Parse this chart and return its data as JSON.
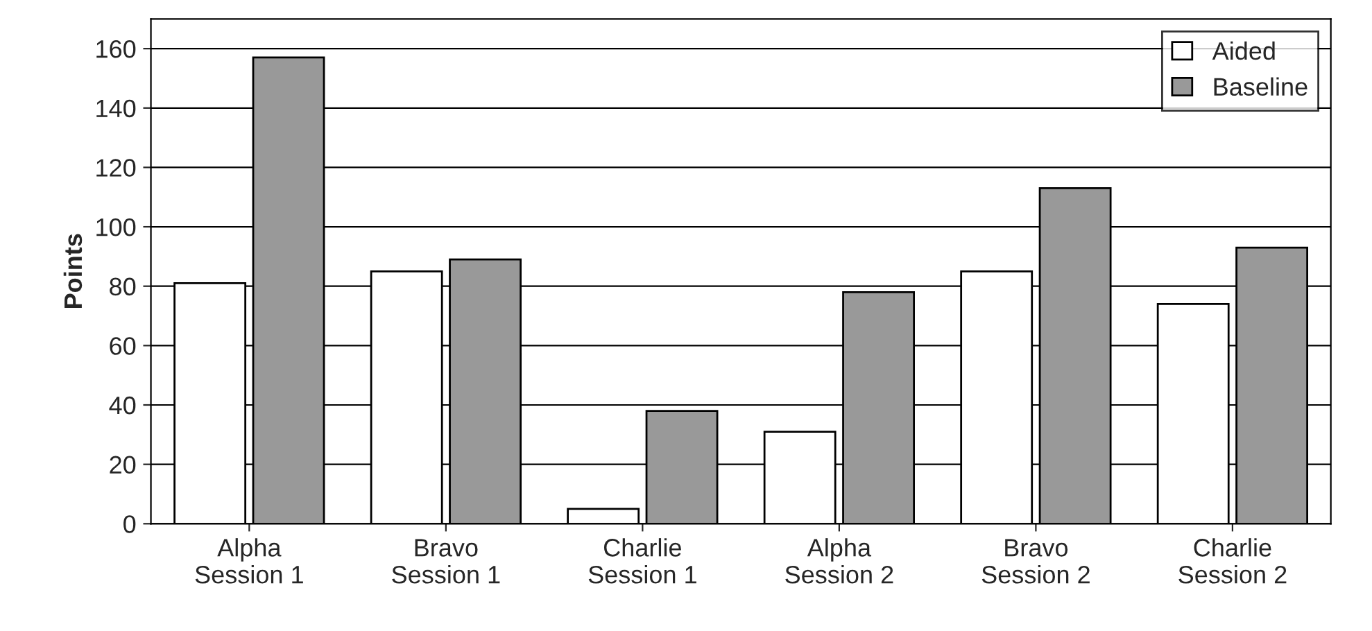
{
  "chart_data": {
    "type": "bar",
    "ylabel": "Points",
    "categories": [
      "Alpha\nSession 1",
      "Bravo\nSession 1",
      "Charlie\nSession 1",
      "Alpha\nSession 2",
      "Bravo\nSession 2",
      "Charlie\nSession 2"
    ],
    "series": [
      {
        "name": "Aided",
        "color": "#ffffff",
        "values": [
          81,
          85,
          5,
          31,
          85,
          74
        ]
      },
      {
        "name": "Baseline",
        "color": "#999999",
        "values": [
          157,
          89,
          38,
          78,
          113,
          93
        ]
      }
    ],
    "ylim": [
      0,
      170
    ],
    "yticks": [
      0,
      20,
      40,
      60,
      80,
      100,
      120,
      140,
      160
    ],
    "grid": "y",
    "legend": "top right"
  }
}
